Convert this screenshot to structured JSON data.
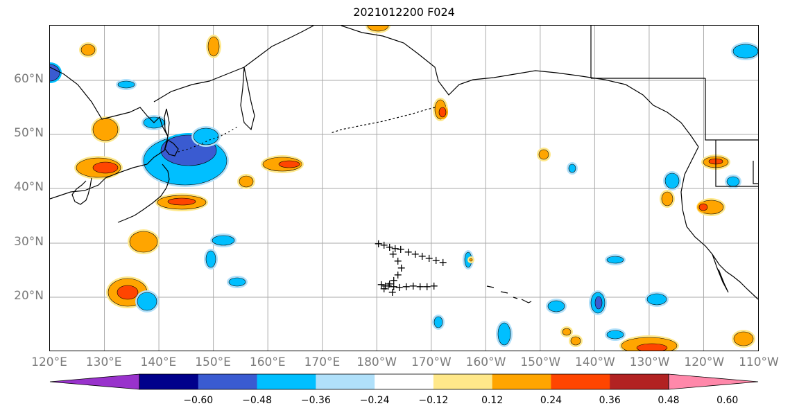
{
  "title": "2021012200 F024",
  "lat_labels": [
    "60°N",
    "50°N",
    "40°N",
    "30°N",
    "20°N"
  ],
  "lon_labels": [
    "120°E",
    "130°E",
    "140°E",
    "150°E",
    "160°E",
    "170°E",
    "180°W",
    "170°W",
    "160°W",
    "150°W",
    "140°W",
    "130°W",
    "120°W",
    "110°W"
  ],
  "colorbar": {
    "colors": [
      "#9932cc",
      "#00008b",
      "#3a5bd1",
      "#00bfff",
      "#b0e0fa",
      "#ffffff",
      "#ffe88a",
      "#ffa500",
      "#ff4500",
      "#b22222",
      "#ff88aa"
    ],
    "tick_labels": [
      "−0.60",
      "−0.48",
      "−0.36",
      "−0.24",
      "−0.12",
      "0.12",
      "0.24",
      "0.36",
      "0.48",
      "0.60"
    ]
  },
  "colors": {
    "neg_light": "#b0e0fa",
    "neg_mid": "#00bfff",
    "neg_strong": "#3a5bd1",
    "pos_light": "#ffe88a",
    "pos_mid": "#ffa500",
    "pos_strong": "#ff4500"
  },
  "track_marker": "+"
}
